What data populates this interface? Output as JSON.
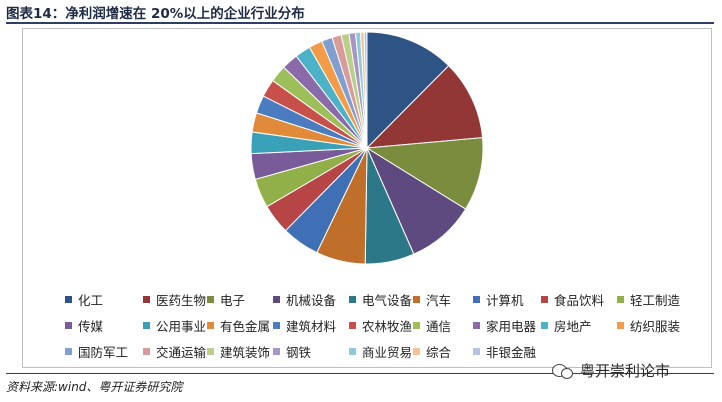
{
  "title": "图表14：净利润增速在 20%以上的企业行业分布",
  "source": "资料来源:wind、粤开证券研究院",
  "watermark": "粤开崇利论市",
  "chart_data": {
    "type": "pie",
    "title": "",
    "categories": [
      "化工",
      "医药生物",
      "电子",
      "机械设备",
      "电气设备",
      "汽车",
      "计算机",
      "食品饮料",
      "轻工制造",
      "传媒",
      "公用事业",
      "有色金属",
      "建筑材料",
      "农林牧渔",
      "通信",
      "家用电器",
      "房地产",
      "纺织服装",
      "国防军工",
      "交通运输",
      "建筑装饰",
      "钢铁",
      "商业贸易",
      "综合",
      "非银金融"
    ],
    "values": [
      12.5,
      11.2,
      10.3,
      9.6,
      6.9,
      6.9,
      5.3,
      4.2,
      4.1,
      3.6,
      3.0,
      2.7,
      2.5,
      2.5,
      2.4,
      2.3,
      2.2,
      1.9,
      1.5,
      1.3,
      1.1,
      0.9,
      0.7,
      0.5,
      0.4
    ],
    "colors": [
      "#2e5485",
      "#933636",
      "#7a8c3d",
      "#5e4a7e",
      "#2c7889",
      "#c06f2b",
      "#3f6fb5",
      "#b84546",
      "#91b04a",
      "#7a5b9a",
      "#3aa0b7",
      "#e08a3a",
      "#4b7cc0",
      "#c8504b",
      "#9dbf5a",
      "#8b6aaa",
      "#4bb2c8",
      "#f29b48",
      "#7f9fd0",
      "#d99b9a",
      "#b9cf8a",
      "#a895c4",
      "#8fcadb",
      "#f6c294",
      "#b4c4e3"
    ],
    "legend_position": "bottom"
  }
}
